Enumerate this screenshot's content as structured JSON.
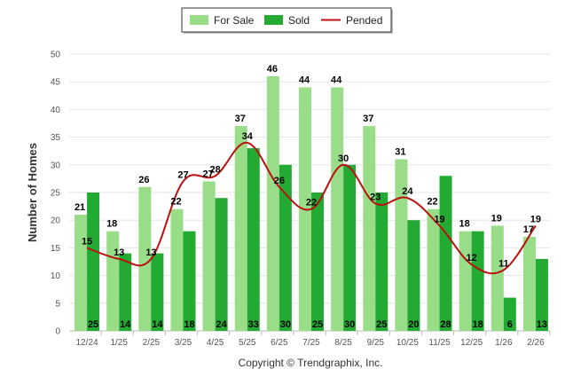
{
  "chart_data": {
    "type": "bar",
    "ylabel": "Number of Homes",
    "ylim": [
      0,
      50
    ],
    "yticks": [
      0,
      5,
      10,
      15,
      20,
      25,
      30,
      35,
      40,
      45,
      50
    ],
    "categories": [
      "12/24",
      "1/25",
      "2/25",
      "3/25",
      "4/25",
      "5/25",
      "6/25",
      "7/25",
      "8/25",
      "9/25",
      "10/25",
      "11/25",
      "12/25",
      "1/26",
      "2/26"
    ],
    "series": [
      {
        "name": "For Sale",
        "kind": "bar",
        "color": "#99dd88",
        "values": [
          21,
          18,
          26,
          22,
          27,
          37,
          46,
          44,
          44,
          37,
          31,
          22,
          18,
          19,
          17
        ]
      },
      {
        "name": "Sold",
        "kind": "bar",
        "color": "#22aa33",
        "values": [
          25,
          14,
          14,
          18,
          24,
          33,
          30,
          25,
          30,
          25,
          20,
          28,
          18,
          6,
          13
        ]
      },
      {
        "name": "Pended",
        "kind": "line",
        "color": "#bb1111",
        "values": [
          15,
          13,
          13,
          27,
          28,
          34,
          26,
          22,
          30,
          23,
          24,
          19,
          12,
          11,
          19
        ]
      }
    ],
    "legend_position": "top-center",
    "grid": true
  },
  "footer": {
    "copyright": "Copyright © Trendgraphix, Inc."
  }
}
